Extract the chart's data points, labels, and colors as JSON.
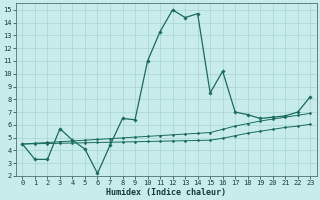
{
  "xlabel": "Humidex (Indice chaleur)",
  "background_color": "#c8ecec",
  "grid_color": "#a8d4d4",
  "line_color": "#1a6b5a",
  "xlim": [
    -0.5,
    23.5
  ],
  "ylim": [
    2,
    15.5
  ],
  "xticks": [
    0,
    1,
    2,
    3,
    4,
    5,
    6,
    7,
    8,
    9,
    10,
    11,
    12,
    13,
    14,
    15,
    16,
    17,
    18,
    19,
    20,
    21,
    22,
    23
  ],
  "yticks": [
    2,
    3,
    4,
    5,
    6,
    7,
    8,
    9,
    10,
    11,
    12,
    13,
    14,
    15
  ],
  "series1_x": [
    0,
    1,
    2,
    3,
    4,
    5,
    6,
    7,
    8,
    9,
    10,
    11,
    12,
    13,
    14,
    15,
    16,
    17,
    18,
    19,
    20,
    21,
    22,
    23
  ],
  "series1_y": [
    4.5,
    3.3,
    3.3,
    5.7,
    4.8,
    4.1,
    2.2,
    4.4,
    6.5,
    6.4,
    11.0,
    13.3,
    15.0,
    14.4,
    14.7,
    8.5,
    10.2,
    7.0,
    6.8,
    6.5,
    6.6,
    6.7,
    7.0,
    8.2
  ],
  "series2_x": [
    0,
    1,
    2,
    3,
    4,
    5,
    6,
    7,
    8,
    9,
    10,
    11,
    12,
    13,
    14,
    15,
    16,
    17,
    18,
    19,
    20,
    21,
    22,
    23
  ],
  "series2_y": [
    4.5,
    4.56,
    4.62,
    4.68,
    4.74,
    4.8,
    4.86,
    4.92,
    4.98,
    5.04,
    5.1,
    5.16,
    5.22,
    5.28,
    5.34,
    5.4,
    5.65,
    5.91,
    6.1,
    6.3,
    6.45,
    6.6,
    6.75,
    6.9
  ],
  "series3_x": [
    0,
    1,
    2,
    3,
    4,
    5,
    6,
    7,
    8,
    9,
    10,
    11,
    12,
    13,
    14,
    15,
    16,
    17,
    18,
    19,
    20,
    21,
    22,
    23
  ],
  "series3_y": [
    4.5,
    4.52,
    4.54,
    4.56,
    4.58,
    4.6,
    4.62,
    4.64,
    4.66,
    4.68,
    4.7,
    4.72,
    4.74,
    4.76,
    4.78,
    4.8,
    4.95,
    5.15,
    5.35,
    5.5,
    5.65,
    5.8,
    5.9,
    6.05
  ]
}
